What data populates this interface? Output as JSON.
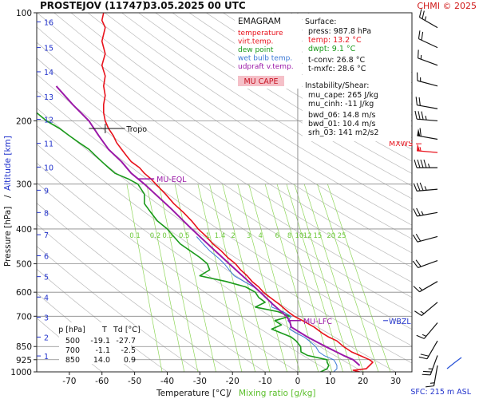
{
  "header": {
    "station": "PROSTEJOV (11747)",
    "datetime": "03.05.2025 00 UTC",
    "copyright": "CHMI © 2025"
  },
  "legend": {
    "title": "EMAGRAM",
    "items": [
      {
        "label": "temperature",
        "color": "#e8121c"
      },
      {
        "label": "virt.temp.",
        "color": "#e8121c"
      },
      {
        "label": "dew point",
        "color": "#1a9a1a"
      },
      {
        "label": "wet bulb temp.",
        "color": "#3a78d6"
      },
      {
        "label": "udpraft v.temp.",
        "color": "#9b19a8"
      }
    ],
    "cape_label": "MU CAPE"
  },
  "surface": {
    "title": "Surface:",
    "press": "press: 987.8 hPa",
    "temp": "temp: 13.2 °C",
    "dwpt": "dwpt: 9.1 °C",
    "tconv": "t-conv: 26.8 °C",
    "tmxfc": "t-mxfc: 28.6 °C"
  },
  "instability": {
    "title": "Instability/Shear:",
    "mu_cape": "mu_cape: 265 J/kg",
    "mu_cinh": "mu_cinh: -11 J/kg",
    "bwd_06": "bwd_06: 14.8 m/s",
    "bwd_01": "bwd_01: 10.4 m/s",
    "srh_03": "srh_03: 141 m2/s2"
  },
  "level_table": {
    "headers": [
      "p [hPa]",
      "T",
      "Td [°C]"
    ],
    "rows": [
      [
        "500",
        "-19.1",
        "-27.7"
      ],
      [
        "700",
        "-1.1",
        "-2.5"
      ],
      [
        "850",
        "14.0",
        "0.9"
      ]
    ]
  },
  "labels": {
    "tropo": "Tropo",
    "mu_eql": "MU-EQL",
    "mu_lfc": "MU-LFC",
    "mxws": "MXWS",
    "wbzl": "WBZL",
    "sfc": "SFC: 215 m ASL"
  },
  "colors": {
    "temperature": "#e8121c",
    "dewpoint": "#1a9a1a",
    "wetbulb": "#3a78d6",
    "parcel": "#9b19a8",
    "altitude": "#2233cc",
    "mixing": "#8fd65a",
    "dry_adiabat": "#bbbbbb",
    "isobar": "#888888"
  },
  "chart_data": {
    "type": "line",
    "xlabel": "Temperature [°C]",
    "xlabel_sep": "/",
    "xlabel2": "Mixing ratio [g/kg]",
    "ylabel": "Pressure [hPa]",
    "ylabel_sep": "/",
    "ylabel2": "Altitude [km]",
    "xlim": [
      -80,
      35
    ],
    "x_ticks": [
      -70,
      -60,
      -50,
      -40,
      -30,
      -20,
      -10,
      0,
      10,
      20,
      30
    ],
    "ylim": [
      1000,
      100
    ],
    "y_scale": "log",
    "pressure_ticks": [
      100,
      200,
      300,
      400,
      500,
      600,
      700,
      850,
      925,
      1000
    ],
    "altitude_ticks": [
      {
        "km": 1,
        "p": 903
      },
      {
        "km": 2,
        "p": 800
      },
      {
        "km": 3,
        "p": 704
      },
      {
        "km": 4,
        "p": 619
      },
      {
        "km": 5,
        "p": 543
      },
      {
        "km": 6,
        "p": 475
      },
      {
        "km": 7,
        "p": 415
      },
      {
        "km": 8,
        "p": 360
      },
      {
        "km": 9,
        "p": 312
      },
      {
        "km": 10,
        "p": 269
      },
      {
        "km": 11,
        "p": 231
      },
      {
        "km": 12,
        "p": 198
      },
      {
        "km": 13,
        "p": 171
      },
      {
        "km": 14,
        "p": 146
      },
      {
        "km": 15,
        "p": 125
      },
      {
        "km": 16,
        "p": 106
      }
    ],
    "mixing_ratio_labels": [
      "0.1",
      "0.2",
      "0.3",
      "0.5",
      "1",
      "1.4",
      "2",
      "3",
      "4",
      "6",
      "8",
      "10",
      "12",
      "15",
      "20",
      "25"
    ],
    "mixing_ratio_values": [
      0.1,
      0.2,
      0.3,
      0.5,
      1,
      1.4,
      2,
      3,
      4,
      6,
      8,
      10,
      12,
      15,
      20,
      25
    ],
    "series": [
      {
        "key": "temperature",
        "points": [
          [
            1000,
            19
          ],
          [
            990,
            17
          ],
          [
            980,
            21
          ],
          [
            960,
            22
          ],
          [
            940,
            23
          ],
          [
            925,
            22
          ],
          [
            900,
            19
          ],
          [
            880,
            16.5
          ],
          [
            850,
            14
          ],
          [
            820,
            12
          ],
          [
            800,
            9.5
          ],
          [
            780,
            7.5
          ],
          [
            750,
            5
          ],
          [
            720,
            1.5
          ],
          [
            700,
            -1.1
          ],
          [
            680,
            -3
          ],
          [
            650,
            -5.5
          ],
          [
            620,
            -8.5
          ],
          [
            600,
            -10.5
          ],
          [
            580,
            -12
          ],
          [
            560,
            -14
          ],
          [
            540,
            -15.5
          ],
          [
            520,
            -17.5
          ],
          [
            500,
            -19.1
          ],
          [
            480,
            -21.5
          ],
          [
            460,
            -23.5
          ],
          [
            440,
            -26
          ],
          [
            420,
            -28
          ],
          [
            400,
            -30.5
          ],
          [
            380,
            -32.5
          ],
          [
            360,
            -35
          ],
          [
            340,
            -38
          ],
          [
            320,
            -40.5
          ],
          [
            300,
            -43.5
          ],
          [
            290,
            -45
          ],
          [
            280,
            -47
          ],
          [
            270,
            -48.5
          ],
          [
            260,
            -51
          ],
          [
            250,
            -52.5
          ],
          [
            240,
            -54
          ],
          [
            230,
            -55.5
          ],
          [
            220,
            -56.5
          ],
          [
            210,
            -58
          ],
          [
            200,
            -59
          ],
          [
            190,
            -59.5
          ],
          [
            180,
            -59.5
          ],
          [
            170,
            -59
          ],
          [
            160,
            -59.5
          ],
          [
            150,
            -59
          ],
          [
            140,
            -60
          ],
          [
            130,
            -59
          ],
          [
            120,
            -60
          ],
          [
            110,
            -59
          ],
          [
            105,
            -60
          ],
          [
            100,
            -59.5
          ]
        ]
      },
      {
        "key": "dewpoint",
        "points": [
          [
            1000,
            7
          ],
          [
            980,
            9
          ],
          [
            960,
            9.5
          ],
          [
            940,
            9
          ],
          [
            925,
            9
          ],
          [
            900,
            3
          ],
          [
            880,
            1
          ],
          [
            850,
            0.9
          ],
          [
            820,
            -0.5
          ],
          [
            800,
            -2
          ],
          [
            780,
            -5
          ],
          [
            760,
            -8
          ],
          [
            740,
            -5
          ],
          [
            720,
            -7
          ],
          [
            700,
            -2.5
          ],
          [
            680,
            -6
          ],
          [
            660,
            -13
          ],
          [
            640,
            -10
          ],
          [
            620,
            -12
          ],
          [
            600,
            -13
          ],
          [
            580,
            -16
          ],
          [
            560,
            -22
          ],
          [
            540,
            -30
          ],
          [
            520,
            -27
          ],
          [
            500,
            -27.7
          ],
          [
            480,
            -30
          ],
          [
            460,
            -33
          ],
          [
            440,
            -36
          ],
          [
            420,
            -38
          ],
          [
            400,
            -40
          ],
          [
            380,
            -43
          ],
          [
            360,
            -45
          ],
          [
            340,
            -47
          ],
          [
            320,
            -47
          ],
          [
            300,
            -49
          ],
          [
            290,
            -52
          ],
          [
            280,
            -56
          ],
          [
            270,
            -58
          ],
          [
            260,
            -60
          ],
          [
            250,
            -62
          ],
          [
            240,
            -64
          ],
          [
            230,
            -67
          ],
          [
            220,
            -70
          ],
          [
            210,
            -73
          ],
          [
            200,
            -77
          ],
          [
            190,
            -80
          ]
        ]
      },
      {
        "key": "wetbulb",
        "points": [
          [
            1000,
            11
          ],
          [
            980,
            12
          ],
          [
            960,
            12
          ],
          [
            940,
            11.5
          ],
          [
            925,
            11
          ],
          [
            900,
            8
          ],
          [
            880,
            6.5
          ],
          [
            850,
            5.5
          ],
          [
            820,
            3.5
          ],
          [
            800,
            2
          ],
          [
            780,
            -0.5
          ],
          [
            760,
            -2.5
          ],
          [
            740,
            -2
          ],
          [
            720,
            -3
          ],
          [
            700,
            -2
          ],
          [
            680,
            -4.5
          ],
          [
            660,
            -8
          ],
          [
            640,
            -8
          ],
          [
            620,
            -10
          ],
          [
            600,
            -11.5
          ],
          [
            580,
            -13.5
          ],
          [
            560,
            -16.5
          ],
          [
            540,
            -19.5
          ],
          [
            520,
            -21
          ],
          [
            500,
            -22.5
          ],
          [
            480,
            -24.5
          ],
          [
            460,
            -27
          ],
          [
            440,
            -29
          ],
          [
            420,
            -31
          ]
        ]
      },
      {
        "key": "parcel",
        "points": [
          [
            960,
            19
          ],
          [
            925,
            17
          ],
          [
            900,
            14
          ],
          [
            850,
            8.5
          ],
          [
            800,
            3
          ],
          [
            750,
            -2
          ],
          [
            720,
            -2.5
          ],
          [
            700,
            -3.5
          ],
          [
            650,
            -7.5
          ],
          [
            600,
            -11.5
          ],
          [
            550,
            -16
          ],
          [
            500,
            -21
          ],
          [
            450,
            -26.5
          ],
          [
            400,
            -32.5
          ],
          [
            350,
            -39
          ],
          [
            300,
            -47
          ],
          [
            280,
            -51
          ],
          [
            260,
            -54
          ],
          [
            240,
            -58
          ],
          [
            220,
            -61
          ],
          [
            200,
            -64
          ],
          [
            180,
            -69
          ],
          [
            160,
            -74
          ]
        ]
      }
    ],
    "annotations": [
      {
        "label": "Tropo",
        "p": 210
      },
      {
        "label": "MU-EQL",
        "p": 290
      },
      {
        "label": "MU-LFC",
        "p": 720
      },
      {
        "label": "MXWS",
        "p": 245
      },
      {
        "label": "WBZL",
        "p": 720
      }
    ],
    "wind_barbs": [
      {
        "p": 110,
        "dir": 300,
        "speed_kt": 25
      },
      {
        "p": 125,
        "dir": 295,
        "speed_kt": 20
      },
      {
        "p": 140,
        "dir": 290,
        "speed_kt": 15
      },
      {
        "p": 160,
        "dir": 285,
        "speed_kt": 15
      },
      {
        "p": 185,
        "dir": 280,
        "speed_kt": 20
      },
      {
        "p": 200,
        "dir": 275,
        "speed_kt": 35
      },
      {
        "p": 225,
        "dir": 280,
        "speed_kt": 60
      },
      {
        "p": 245,
        "dir": 275,
        "speed_kt": 55
      },
      {
        "p": 270,
        "dir": 270,
        "speed_kt": 45
      },
      {
        "p": 310,
        "dir": 265,
        "speed_kt": 35
      },
      {
        "p": 360,
        "dir": 260,
        "speed_kt": 25
      },
      {
        "p": 420,
        "dir": 255,
        "speed_kt": 20
      },
      {
        "p": 490,
        "dir": 250,
        "speed_kt": 20
      },
      {
        "p": 560,
        "dir": 240,
        "speed_kt": 15
      },
      {
        "p": 640,
        "dir": 230,
        "speed_kt": 15
      },
      {
        "p": 730,
        "dir": 220,
        "speed_kt": 15
      },
      {
        "p": 820,
        "dir": 210,
        "speed_kt": 20
      },
      {
        "p": 900,
        "dir": 200,
        "speed_kt": 25
      },
      {
        "p": 960,
        "dir": 190,
        "speed_kt": 15
      }
    ]
  }
}
